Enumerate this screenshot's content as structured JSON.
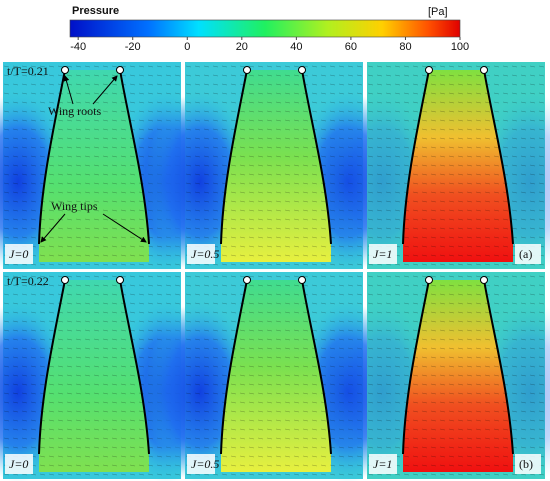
{
  "chart_data": {
    "type": "contour",
    "colorbar_label": "Pressure",
    "colorbar_unit": "[Pa]",
    "clim": [
      -43,
      100
    ],
    "cticks": [
      -40,
      -20,
      0,
      20,
      40,
      60,
      80,
      100
    ],
    "rows": [
      {
        "label": "t/T=0.21",
        "tag": "(a)"
      },
      {
        "label": "t/T=0.22",
        "tag": "(b)"
      }
    ],
    "columns": [
      "J=0",
      "J=0.5",
      "J=1"
    ],
    "annotations": [
      "Wing roots",
      "Wing tips"
    ]
  }
}
